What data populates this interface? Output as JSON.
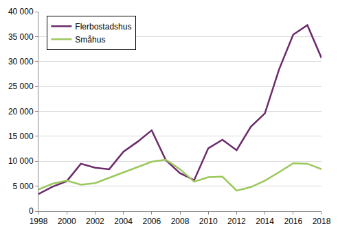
{
  "chart_data": {
    "type": "line",
    "x": [
      1998,
      1999,
      2000,
      2001,
      2002,
      2003,
      2004,
      2005,
      2006,
      2007,
      2008,
      2009,
      2010,
      2011,
      2012,
      2013,
      2014,
      2015,
      2016,
      2017,
      2018
    ],
    "series": [
      {
        "name": "Flerbostadshus",
        "color": "#6b2a6b",
        "values": [
          3400,
          4900,
          6000,
          9500,
          8700,
          8400,
          11900,
          13900,
          16200,
          10200,
          7600,
          6200,
          12600,
          14300,
          12200,
          16900,
          19600,
          28400,
          35400,
          37300,
          30700
        ]
      },
      {
        "name": "Småhus",
        "color": "#9bc85a",
        "values": [
          4300,
          5500,
          6100,
          5300,
          5600,
          6700,
          7800,
          8900,
          9900,
          10300,
          8400,
          5900,
          6800,
          6900,
          4100,
          4800,
          6100,
          7800,
          9600,
          9500,
          8400
        ]
      }
    ],
    "xlim": [
      1998,
      2018
    ],
    "xticks": [
      1998,
      2000,
      2002,
      2004,
      2006,
      2008,
      2010,
      2012,
      2014,
      2016,
      2018
    ],
    "ylim": [
      0,
      40000
    ],
    "yticks": [
      0,
      {
        "value": 5000,
        "label": "5 000"
      },
      {
        "value": 10000,
        "label": "10 000"
      },
      {
        "value": 15000,
        "label": "15 000"
      },
      {
        "value": 20000,
        "label": "20 000"
      },
      {
        "value": 25000,
        "label": "25 000"
      },
      {
        "value": 30000,
        "label": "30 000"
      },
      {
        "value": 35000,
        "label": "35 000"
      },
      {
        "value": 40000,
        "label": "40 000"
      }
    ],
    "grid": true,
    "legend": "upper left"
  }
}
